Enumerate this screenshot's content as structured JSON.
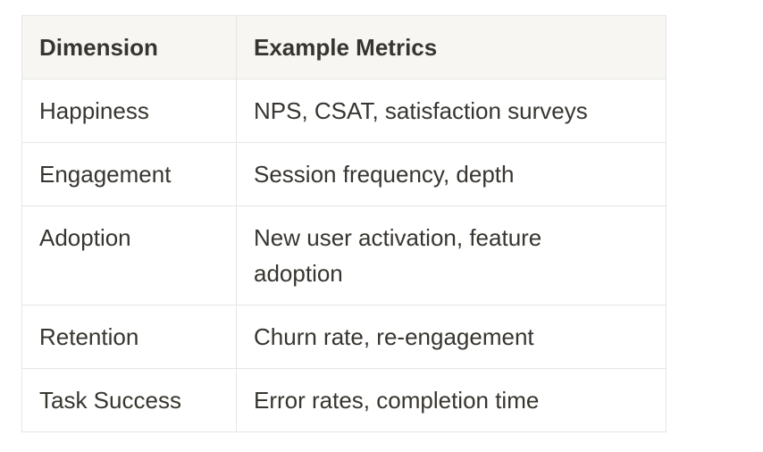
{
  "table": {
    "headers": [
      "Dimension",
      "Example Metrics"
    ],
    "rows": [
      [
        "Happiness",
        "NPS, CSAT, satisfaction surveys"
      ],
      [
        "Engagement",
        "Session frequency, depth"
      ],
      [
        "Adoption",
        "New user activation, feature adoption"
      ],
      [
        "Retention",
        "Churn rate, re-engagement"
      ],
      [
        "Task Success",
        "Error rates, completion time"
      ]
    ]
  }
}
